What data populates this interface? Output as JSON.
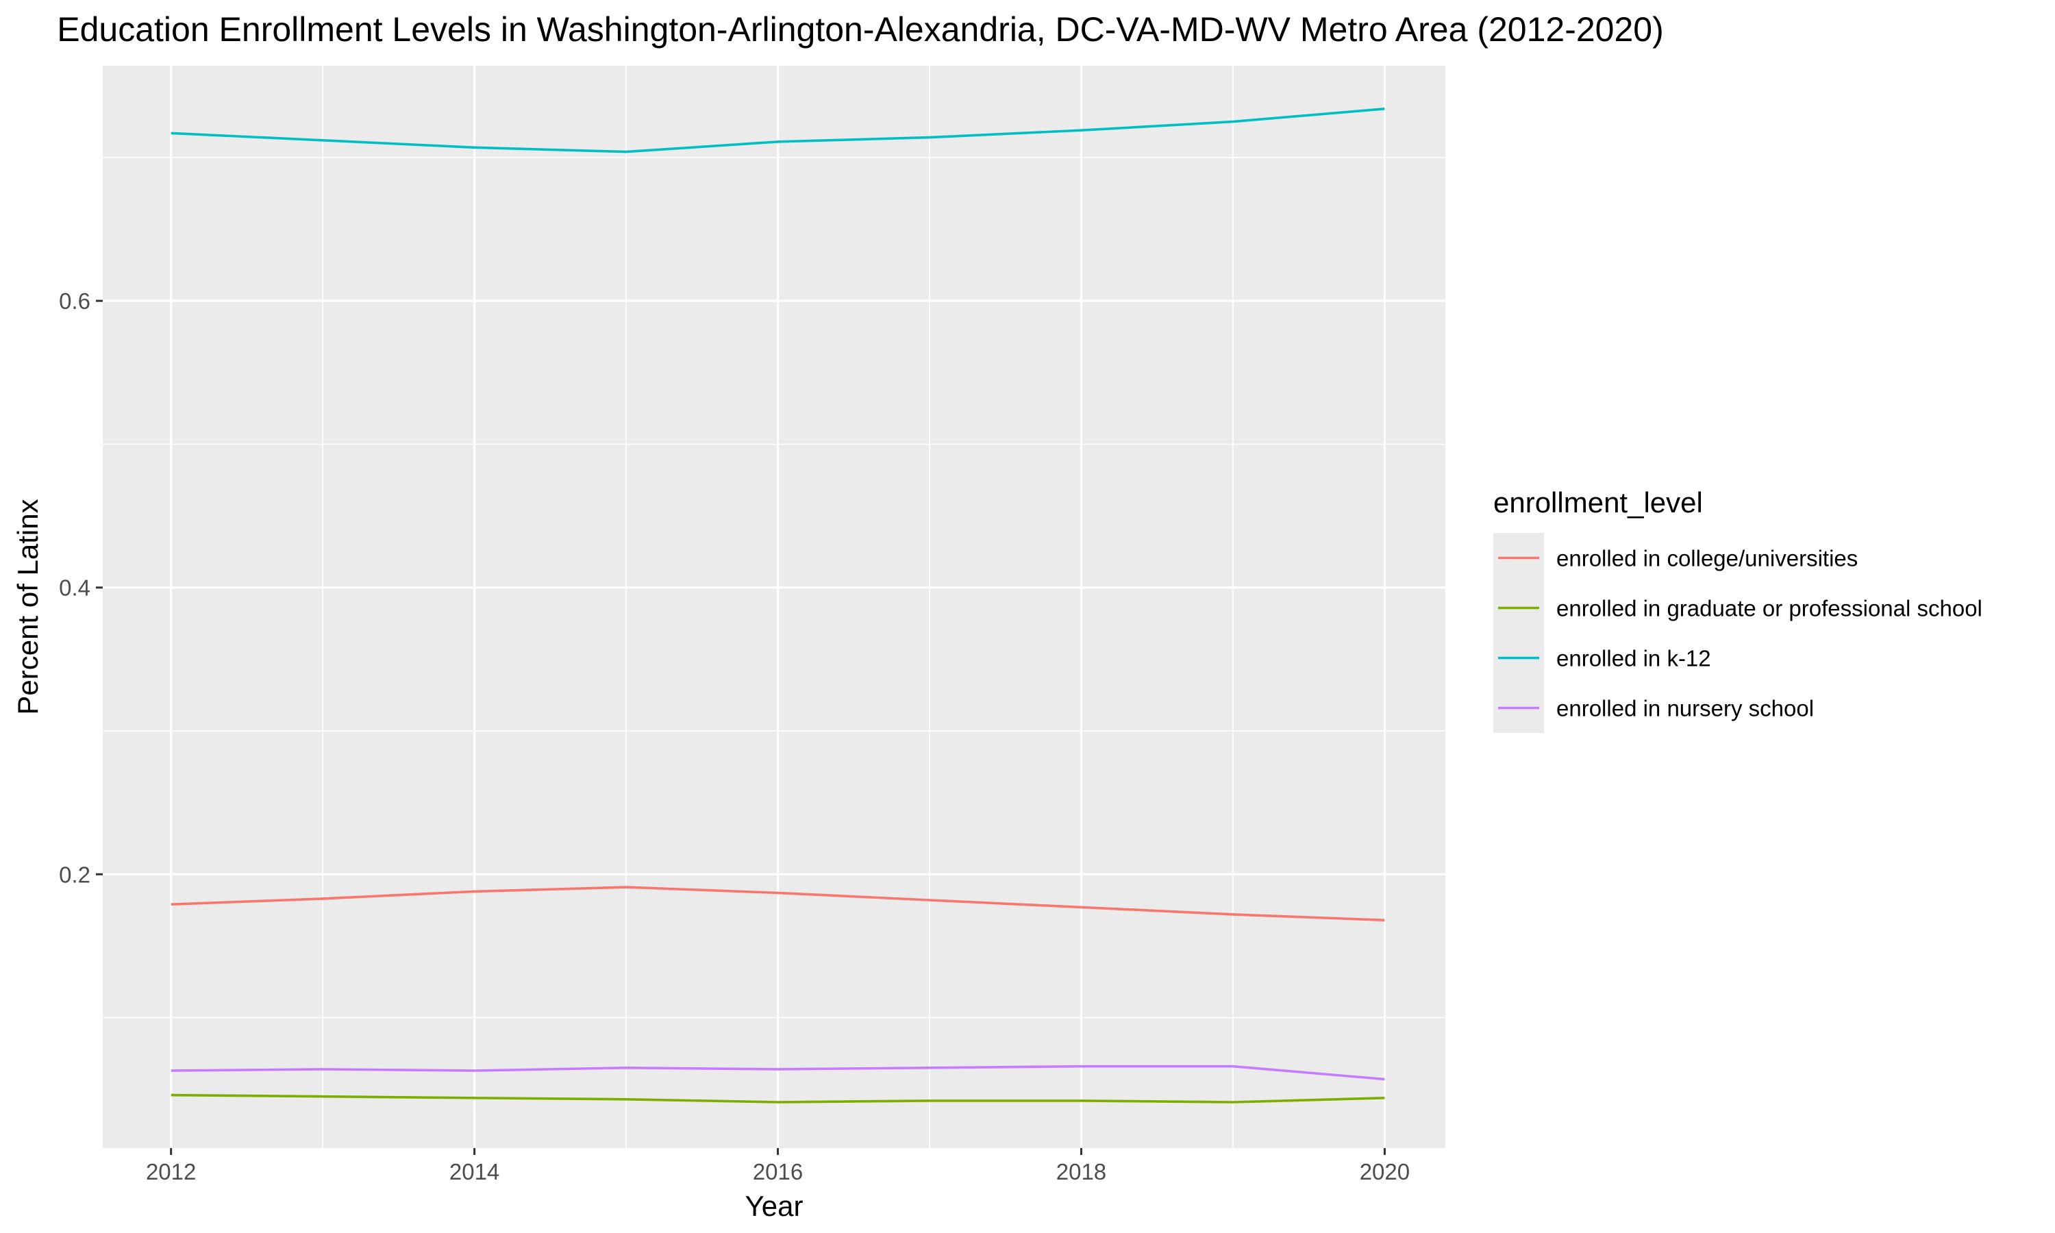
{
  "chart_data": {
    "type": "line",
    "title": "Education Enrollment Levels in Washington-Arlington-Alexandria, DC-VA-MD-WV Metro Area (2012-2020)",
    "xlabel": "Year",
    "ylabel": "Percent of Latinx",
    "x": [
      2012,
      2013,
      2014,
      2015,
      2016,
      2017,
      2018,
      2019,
      2020
    ],
    "x_ticks": [
      "2012",
      "2014",
      "2016",
      "2018",
      "2020"
    ],
    "y_ticks": [
      "0.2",
      "0.4",
      "0.6"
    ],
    "xlim": [
      2011.55,
      2020.4
    ],
    "ylim": [
      0.009,
      0.764
    ],
    "grid": true,
    "legend": {
      "title": "enrollment_level",
      "position": "right"
    },
    "series": [
      {
        "name": "enrolled in college/universities",
        "color": "#F8766D",
        "values": [
          0.179,
          0.183,
          0.188,
          0.191,
          0.187,
          0.182,
          0.177,
          0.172,
          0.168
        ]
      },
      {
        "name": "enrolled in graduate or professional school",
        "color": "#7CAE00",
        "values": [
          0.046,
          0.045,
          0.044,
          0.043,
          0.041,
          0.042,
          0.042,
          0.041,
          0.044
        ]
      },
      {
        "name": "enrolled in k-12",
        "color": "#00BFC4",
        "values": [
          0.717,
          0.712,
          0.707,
          0.704,
          0.711,
          0.714,
          0.719,
          0.725,
          0.734
        ]
      },
      {
        "name": "enrolled in nursery school",
        "color": "#C77CFF",
        "values": [
          0.063,
          0.064,
          0.063,
          0.065,
          0.064,
          0.065,
          0.066,
          0.066,
          0.057
        ]
      }
    ]
  }
}
